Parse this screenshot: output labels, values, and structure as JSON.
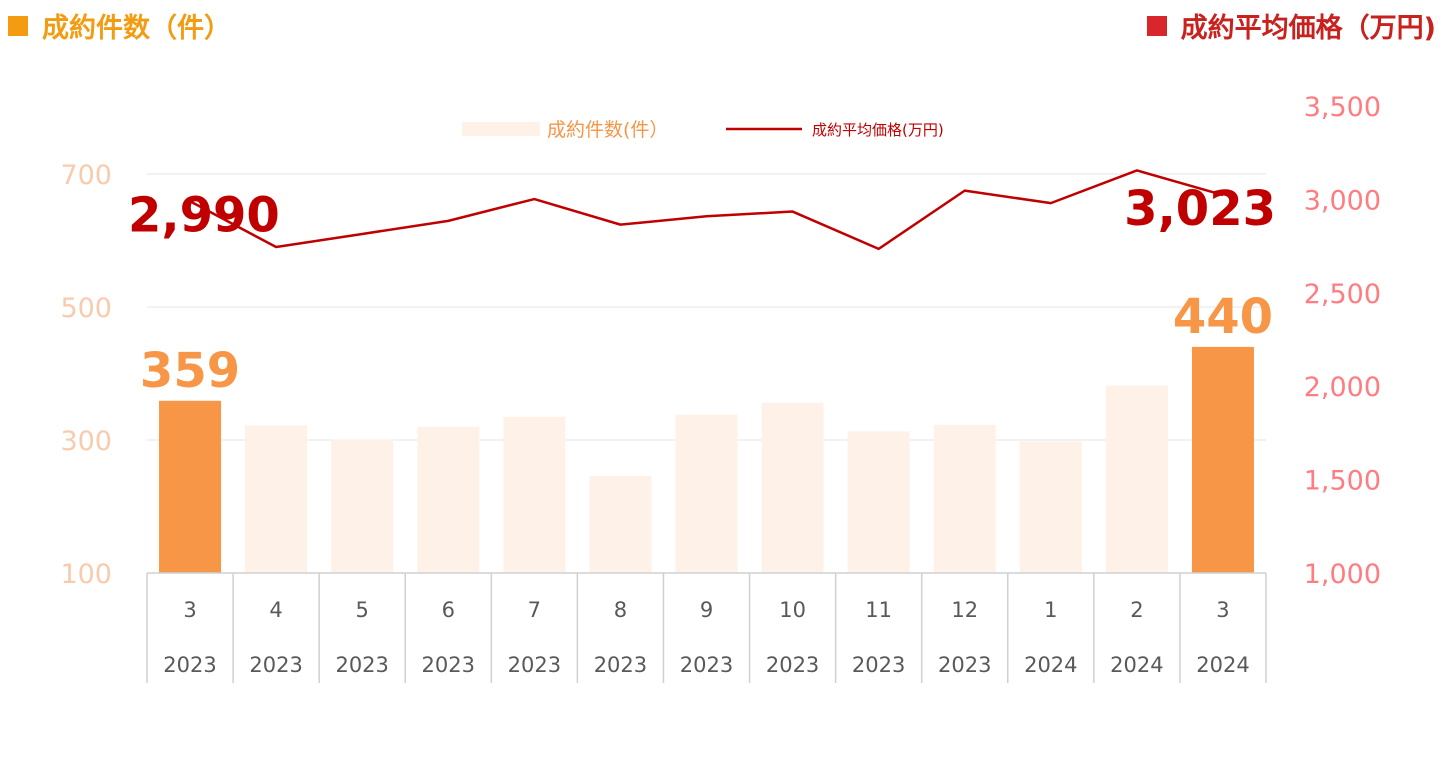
{
  "header": {
    "left_title": "成約件数（件）",
    "right_title": "成約平均価格（万円)"
  },
  "colors": {
    "bar_highlight": "#F79646",
    "bar_muted": "#FDF1E8",
    "line": "#C00000",
    "left_axis_text": "#F8CBAD",
    "right_axis_text": "#FF7C80",
    "left_title": "#F39C12",
    "right_title": "#C9211E"
  },
  "chart_data": {
    "type": "bar+line",
    "categories": [
      {
        "month": "3",
        "year": "2023"
      },
      {
        "month": "4",
        "year": "2023"
      },
      {
        "month": "5",
        "year": "2023"
      },
      {
        "month": "6",
        "year": "2023"
      },
      {
        "month": "7",
        "year": "2023"
      },
      {
        "month": "8",
        "year": "2023"
      },
      {
        "month": "9",
        "year": "2023"
      },
      {
        "month": "10",
        "year": "2023"
      },
      {
        "month": "11",
        "year": "2023"
      },
      {
        "month": "12",
        "year": "2023"
      },
      {
        "month": "1",
        "year": "2024"
      },
      {
        "month": "2",
        "year": "2024"
      },
      {
        "month": "3",
        "year": "2024"
      }
    ],
    "series": [
      {
        "name": "成約件数(件）",
        "type": "bar",
        "axis": "left",
        "values": [
          359,
          322,
          301,
          320,
          335,
          246,
          338,
          356,
          313,
          323,
          298,
          382,
          440
        ],
        "highlight": [
          0,
          12
        ]
      },
      {
        "name": "成約平均価格(万円)",
        "type": "line",
        "axis": "right",
        "values": [
          2990,
          2745,
          2815,
          2885,
          3002,
          2865,
          2910,
          2935,
          2735,
          3047,
          2980,
          3155,
          3023
        ]
      }
    ],
    "left_axis": {
      "ylim": [
        100,
        700
      ],
      "ticks": [
        "100",
        "300",
        "500",
        "700"
      ],
      "tick_values": [
        100,
        300,
        500,
        700
      ]
    },
    "right_axis": {
      "ylim": [
        1000,
        3500
      ],
      "ticks": [
        "1,000",
        "1,500",
        "2,000",
        "2,500",
        "3,000",
        "3,500"
      ],
      "tick_values": [
        1000,
        1500,
        2000,
        2500,
        3000,
        3500
      ]
    },
    "annotations": [
      {
        "series": 0,
        "index": 0,
        "text": "359"
      },
      {
        "series": 0,
        "index": 12,
        "text": "440"
      },
      {
        "series": 1,
        "index": 0,
        "text": "2,990"
      },
      {
        "series": 1,
        "index": 12,
        "text": "3,023"
      }
    ],
    "legend": {
      "placement": "top-center"
    },
    "grid": true
  }
}
